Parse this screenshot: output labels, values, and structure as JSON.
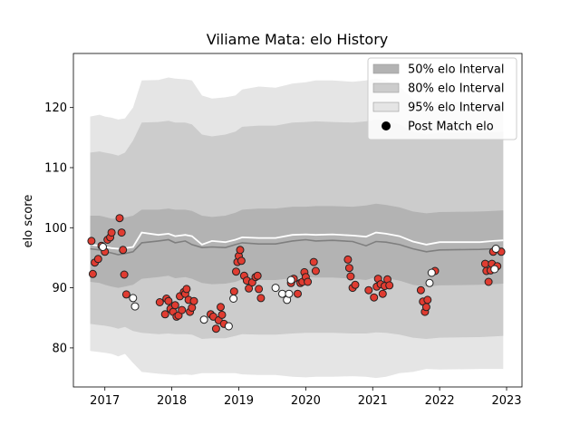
{
  "chart_data": {
    "type": "scatter",
    "title": "Viliame Mata: elo History",
    "xlabel": "",
    "ylabel": "elo score",
    "xlim": [
      2016.53,
      2023.23
    ],
    "ylim": [
      73.5,
      129
    ],
    "x_ticks": [
      2017,
      2018,
      2019,
      2020,
      2021,
      2022,
      2023
    ],
    "y_ticks": [
      80,
      90,
      100,
      110,
      120
    ],
    "grid": false,
    "legend_position": "top-right",
    "legend": [
      {
        "label": "50% elo Interval",
        "kind": "patch",
        "color": "#b3b3b3"
      },
      {
        "label": "80% elo Interval",
        "kind": "patch",
        "color": "#cccccc"
      },
      {
        "label": "95% elo Interval",
        "kind": "patch",
        "color": "#e5e5e5"
      },
      {
        "label": "Post Match elo",
        "kind": "marker",
        "color": "#000000"
      }
    ],
    "colors": {
      "band95": "#e5e5e5",
      "band80": "#cccccc",
      "band50": "#b3b3b3",
      "median_line": "#7f7f7f",
      "mean_line": "#ffffff",
      "win_marker": "#e03c31",
      "loss_marker": "#ffffff",
      "marker_edge": "#222222"
    },
    "bands": {
      "x": [
        2016.78,
        2016.92,
        2017.0,
        2017.1,
        2017.2,
        2017.3,
        2017.42,
        2017.55,
        2017.8,
        2017.95,
        2018.05,
        2018.2,
        2018.3,
        2018.45,
        2018.6,
        2018.8,
        2018.95,
        2019.05,
        2019.3,
        2019.55,
        2019.8,
        2020.0,
        2020.15,
        2020.4,
        2020.7,
        2020.9,
        2021.05,
        2021.2,
        2021.4,
        2021.6,
        2021.8,
        2022.0,
        2022.6,
        2022.8,
        2022.95
      ],
      "upper95": [
        118.5,
        118.8,
        118.5,
        118.3,
        118.0,
        118.2,
        120.0,
        124.5,
        124.6,
        125.0,
        124.8,
        124.7,
        124.5,
        122.0,
        121.5,
        121.7,
        122.0,
        123.0,
        123.5,
        123.3,
        124.0,
        124.2,
        124.5,
        124.5,
        124.3,
        124.5,
        124.8,
        124.5,
        123.5,
        121.5,
        120.5,
        121.0,
        120.8,
        121.0,
        121.2
      ],
      "upper80": [
        112.5,
        112.7,
        112.5,
        112.3,
        112.0,
        112.5,
        114.5,
        117.5,
        117.6,
        117.8,
        117.5,
        117.5,
        117.2,
        115.5,
        115.2,
        115.5,
        116.0,
        116.8,
        117.0,
        117.0,
        117.5,
        117.6,
        117.7,
        117.6,
        117.5,
        117.7,
        118.0,
        117.8,
        117.2,
        116.0,
        115.5,
        115.8,
        115.8,
        115.9,
        116.0
      ],
      "upper50": [
        102.0,
        102.0,
        101.8,
        101.5,
        101.5,
        101.7,
        102.0,
        103.0,
        103.0,
        103.2,
        103.0,
        103.0,
        102.8,
        102.0,
        101.8,
        102.0,
        102.5,
        103.0,
        103.2,
        103.2,
        103.5,
        103.5,
        103.6,
        103.6,
        103.5,
        103.7,
        104.0,
        103.8,
        103.4,
        102.7,
        102.4,
        102.6,
        102.7,
        102.8,
        102.9
      ],
      "median": [
        96.5,
        96.3,
        96.0,
        95.8,
        95.5,
        95.7,
        96.0,
        97.5,
        97.8,
        98.0,
        97.5,
        97.8,
        97.2,
        96.7,
        96.8,
        96.7,
        97.2,
        97.5,
        97.3,
        97.3,
        97.8,
        98.0,
        97.8,
        97.9,
        97.7,
        97.0,
        97.7,
        97.6,
        97.2,
        96.5,
        96.0,
        96.3,
        96.4,
        96.5,
        96.6
      ],
      "mean": [
        97.2,
        97.0,
        96.8,
        96.6,
        96.5,
        96.6,
        96.8,
        99.2,
        98.8,
        99.0,
        98.6,
        98.8,
        98.6,
        97.2,
        97.8,
        97.6,
        98.0,
        98.4,
        98.3,
        98.3,
        98.8,
        98.9,
        98.8,
        98.9,
        98.7,
        98.5,
        99.2,
        99.0,
        98.6,
        97.7,
        97.2,
        97.6,
        97.6,
        97.8,
        97.9
      ],
      "lower50": [
        91.0,
        90.8,
        90.5,
        90.2,
        90.0,
        90.2,
        90.5,
        91.5,
        91.8,
        92.0,
        91.6,
        91.8,
        91.5,
        90.8,
        90.6,
        90.7,
        91.0,
        91.4,
        91.3,
        91.3,
        91.6,
        91.8,
        91.7,
        91.7,
        91.5,
        91.3,
        91.8,
        91.6,
        91.2,
        90.5,
        90.2,
        90.4,
        90.5,
        90.6,
        90.7
      ],
      "lower80": [
        84.0,
        83.8,
        83.7,
        83.5,
        83.2,
        83.5,
        82.8,
        82.5,
        82.3,
        82.4,
        82.3,
        82.3,
        82.2,
        81.5,
        81.6,
        81.6,
        82.0,
        82.3,
        82.2,
        82.2,
        82.4,
        82.5,
        82.5,
        82.5,
        82.4,
        82.4,
        82.6,
        82.5,
        82.2,
        81.7,
        81.5,
        81.7,
        81.8,
        81.9,
        82.0
      ],
      "lower95": [
        79.5,
        79.3,
        79.2,
        79.0,
        78.6,
        79.0,
        77.5,
        76.0,
        75.7,
        75.6,
        75.5,
        75.6,
        75.5,
        75.8,
        75.8,
        75.8,
        75.8,
        75.6,
        75.5,
        75.5,
        75.2,
        75.1,
        75.2,
        75.2,
        75.3,
        75.2,
        75.0,
        75.2,
        75.8,
        76.0,
        76.5,
        76.4,
        76.5,
        76.5,
        76.5
      ]
    },
    "points_win": [
      [
        2016.8,
        97.8
      ],
      [
        2016.82,
        92.3
      ],
      [
        2016.85,
        94.2
      ],
      [
        2016.9,
        94.8
      ],
      [
        2016.95,
        97.0
      ],
      [
        2017.0,
        96.0
      ],
      [
        2017.04,
        98.0
      ],
      [
        2017.08,
        98.4
      ],
      [
        2017.1,
        99.2
      ],
      [
        2017.22,
        101.6
      ],
      [
        2017.25,
        99.2
      ],
      [
        2017.27,
        96.3
      ],
      [
        2017.29,
        92.2
      ],
      [
        2017.32,
        88.9
      ],
      [
        2017.82,
        87.6
      ],
      [
        2017.9,
        85.6
      ],
      [
        2017.92,
        88.2
      ],
      [
        2017.95,
        87.8
      ],
      [
        2017.98,
        86.5
      ],
      [
        2018.02,
        86.0
      ],
      [
        2018.05,
        87.1
      ],
      [
        2018.07,
        85.2
      ],
      [
        2018.1,
        85.4
      ],
      [
        2018.12,
        88.6
      ],
      [
        2018.15,
        86.3
      ],
      [
        2018.18,
        89.3
      ],
      [
        2018.2,
        89.0
      ],
      [
        2018.22,
        89.8
      ],
      [
        2018.25,
        88.0
      ],
      [
        2018.27,
        86.0
      ],
      [
        2018.3,
        86.7
      ],
      [
        2018.33,
        87.8
      ],
      [
        2018.58,
        85.6
      ],
      [
        2018.62,
        85.2
      ],
      [
        2018.66,
        83.2
      ],
      [
        2018.7,
        84.6
      ],
      [
        2018.73,
        86.8
      ],
      [
        2018.75,
        85.5
      ],
      [
        2018.78,
        84.0
      ],
      [
        2018.93,
        89.4
      ],
      [
        2018.96,
        92.7
      ],
      [
        2018.98,
        94.3
      ],
      [
        2019.0,
        95.3
      ],
      [
        2019.02,
        96.3
      ],
      [
        2019.04,
        94.5
      ],
      [
        2019.08,
        92.0
      ],
      [
        2019.12,
        91.2
      ],
      [
        2019.15,
        89.9
      ],
      [
        2019.2,
        90.9
      ],
      [
        2019.25,
        91.8
      ],
      [
        2019.28,
        92.0
      ],
      [
        2019.3,
        89.8
      ],
      [
        2019.33,
        88.3
      ],
      [
        2019.78,
        90.8
      ],
      [
        2019.82,
        91.5
      ],
      [
        2019.88,
        89.0
      ],
      [
        2019.92,
        90.8
      ],
      [
        2019.95,
        91.0
      ],
      [
        2019.98,
        92.6
      ],
      [
        2020.0,
        91.8
      ],
      [
        2020.03,
        91.0
      ],
      [
        2020.12,
        94.3
      ],
      [
        2020.15,
        92.8
      ],
      [
        2020.63,
        94.7
      ],
      [
        2020.65,
        93.3
      ],
      [
        2020.67,
        91.9
      ],
      [
        2020.7,
        90.0
      ],
      [
        2020.74,
        90.5
      ],
      [
        2020.94,
        89.6
      ],
      [
        2021.02,
        88.4
      ],
      [
        2021.06,
        90.2
      ],
      [
        2021.08,
        91.5
      ],
      [
        2021.12,
        90.6
      ],
      [
        2021.15,
        89.0
      ],
      [
        2021.18,
        90.3
      ],
      [
        2021.22,
        91.4
      ],
      [
        2021.25,
        90.4
      ],
      [
        2021.72,
        89.6
      ],
      [
        2021.75,
        87.7
      ],
      [
        2021.78,
        86.0
      ],
      [
        2021.8,
        86.8
      ],
      [
        2021.82,
        88.0
      ],
      [
        2021.93,
        92.8
      ],
      [
        2022.68,
        94.0
      ],
      [
        2022.7,
        92.8
      ],
      [
        2022.73,
        91.0
      ],
      [
        2022.76,
        92.9
      ],
      [
        2022.78,
        94.0
      ],
      [
        2022.8,
        96.0
      ],
      [
        2022.86,
        93.6
      ],
      [
        2022.92,
        96.0
      ]
    ],
    "points_loss": [
      [
        2016.97,
        96.8
      ],
      [
        2017.42,
        88.3
      ],
      [
        2017.45,
        86.9
      ],
      [
        2018.48,
        84.7
      ],
      [
        2018.85,
        83.6
      ],
      [
        2018.92,
        88.2
      ],
      [
        2019.55,
        90.0
      ],
      [
        2019.65,
        89.0
      ],
      [
        2019.72,
        88.0
      ],
      [
        2019.75,
        89.0
      ],
      [
        2019.78,
        91.3
      ],
      [
        2021.85,
        90.8
      ],
      [
        2021.88,
        92.5
      ],
      [
        2022.82,
        93.1
      ],
      [
        2022.84,
        96.5
      ]
    ]
  }
}
